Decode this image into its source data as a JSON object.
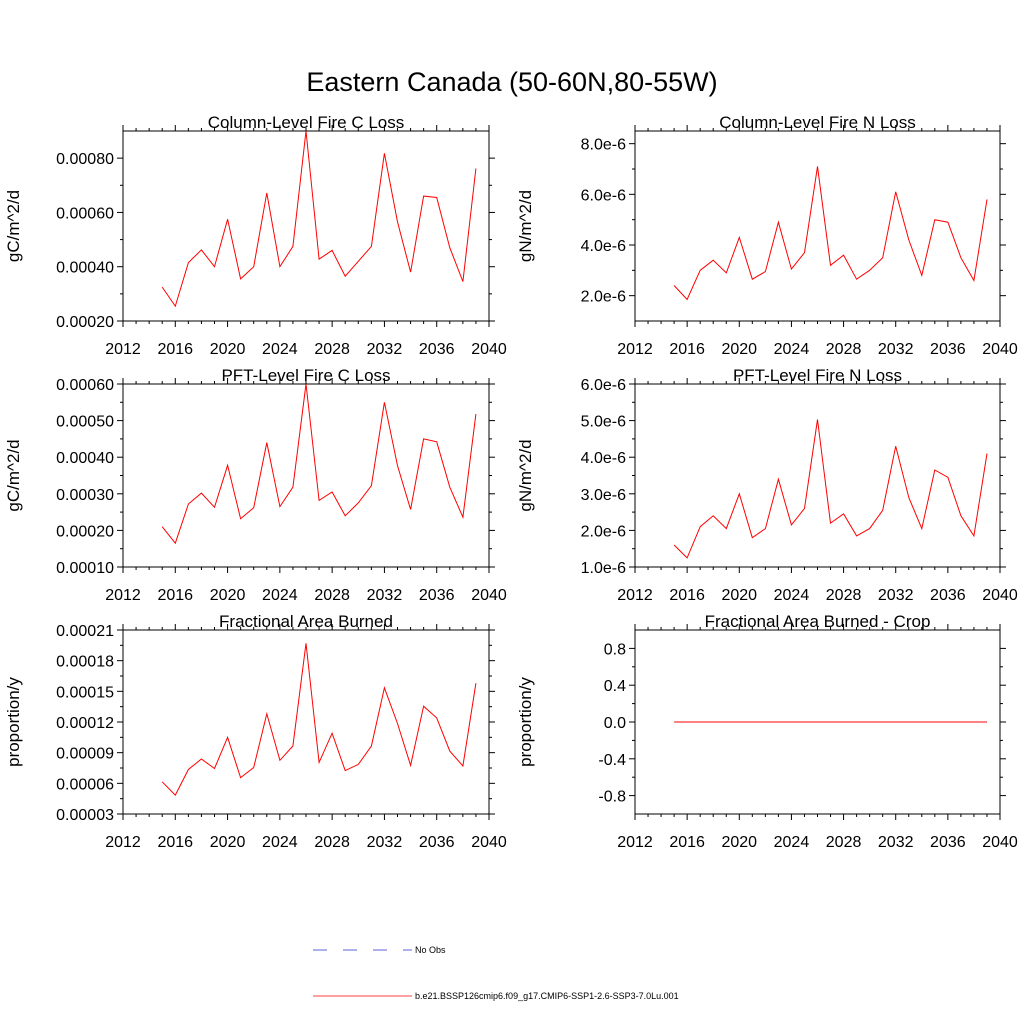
{
  "figure": {
    "title": "Eastern Canada (50-60N,80-55W)"
  },
  "legend": {
    "entries": [
      {
        "label": "No Obs",
        "color": "#2d2dcc",
        "style": "dashed"
      },
      {
        "label": "b.e21.BSSP126cmip6.f09_g17.CMIP6-SSP1-2.6-SSP3-7.0Lu.001",
        "color": "#ff0000",
        "style": "solid"
      }
    ]
  },
  "chart_data": [
    {
      "type": "line",
      "title": "Column-Level Fire C Loss",
      "ylabel": "gC/m^2/d",
      "xlim": [
        2012,
        2040
      ],
      "ylim": [
        0.0002,
        0.0009
      ],
      "xticks": [
        2012,
        2016,
        2020,
        2024,
        2028,
        2032,
        2036,
        2040
      ],
      "xtick_labels": [
        "2012",
        "2016",
        "2020",
        "2024",
        "2028",
        "2032",
        "2036",
        "2040"
      ],
      "yticks": [
        0.0002,
        0.0004,
        0.0006,
        0.0008
      ],
      "ytick_labels": [
        "0.00020",
        "0.00040",
        "0.00060",
        "0.00080"
      ],
      "color": "#ff0000",
      "x": [
        2015,
        2016,
        2017,
        2018,
        2019,
        2020,
        2021,
        2022,
        2023,
        2024,
        2025,
        2026,
        2027,
        2028,
        2029,
        2030,
        2031,
        2032,
        2033,
        2034,
        2035,
        2036,
        2037,
        2038,
        2039
      ],
      "y": [
        0.000325,
        0.000255,
        0.000415,
        0.000462,
        0.0004,
        0.000575,
        0.000355,
        0.0004,
        0.000672,
        0.0004,
        0.000475,
        0.0009,
        0.000428,
        0.00046,
        0.000365,
        0.00042,
        0.000475,
        0.000818,
        0.000565,
        0.00038,
        0.00066,
        0.000655,
        0.00047,
        0.000345,
        0.000762
      ]
    },
    {
      "type": "line",
      "title": "Column-Level Fire N Loss",
      "ylabel": "gN/m^2/d",
      "xlim": [
        2012,
        2040
      ],
      "ylim": [
        1e-06,
        8.5e-06
      ],
      "xticks": [
        2012,
        2016,
        2020,
        2024,
        2028,
        2032,
        2036,
        2040
      ],
      "xtick_labels": [
        "2012",
        "2016",
        "2020",
        "2024",
        "2028",
        "2032",
        "2036",
        "2040"
      ],
      "yticks": [
        2e-06,
        4e-06,
        6e-06,
        8e-06
      ],
      "ytick_labels": [
        "2.0e-6",
        "4.0e-6",
        "6.0e-6",
        "8.0e-6"
      ],
      "color": "#ff0000",
      "x": [
        2015,
        2016,
        2017,
        2018,
        2019,
        2020,
        2021,
        2022,
        2023,
        2024,
        2025,
        2026,
        2027,
        2028,
        2029,
        2030,
        2031,
        2032,
        2033,
        2034,
        2035,
        2036,
        2037,
        2038,
        2039
      ],
      "y": [
        2.4e-06,
        1.85e-06,
        3e-06,
        3.4e-06,
        2.9e-06,
        4.3e-06,
        2.65e-06,
        2.95e-06,
        4.9e-06,
        3.05e-06,
        3.7e-06,
        7.1e-06,
        3.2e-06,
        3.6e-06,
        2.65e-06,
        3e-06,
        3.5e-06,
        6.1e-06,
        4.2e-06,
        2.8e-06,
        5e-06,
        4.9e-06,
        3.5e-06,
        2.6e-06,
        5.8e-06
      ]
    },
    {
      "type": "line",
      "title": "PFT-Level Fire C Loss",
      "ylabel": "gC/m^2/d",
      "xlim": [
        2012,
        2040
      ],
      "ylim": [
        0.0001,
        0.0006
      ],
      "xticks": [
        2012,
        2016,
        2020,
        2024,
        2028,
        2032,
        2036,
        2040
      ],
      "xtick_labels": [
        "2012",
        "2016",
        "2020",
        "2024",
        "2028",
        "2032",
        "2036",
        "2040"
      ],
      "yticks": [
        0.0001,
        0.0002,
        0.0003,
        0.0004,
        0.0005,
        0.0006
      ],
      "ytick_labels": [
        "0.00010",
        "0.00020",
        "0.00030",
        "0.00040",
        "0.00050",
        "0.00060"
      ],
      "color": "#ff0000",
      "x": [
        2015,
        2016,
        2017,
        2018,
        2019,
        2020,
        2021,
        2022,
        2023,
        2024,
        2025,
        2026,
        2027,
        2028,
        2029,
        2030,
        2031,
        2032,
        2033,
        2034,
        2035,
        2036,
        2037,
        2038,
        2039
      ],
      "y": [
        0.00021,
        0.000165,
        0.000272,
        0.000302,
        0.000263,
        0.000378,
        0.000232,
        0.000262,
        0.00044,
        0.000265,
        0.000318,
        0.0006,
        0.000282,
        0.000305,
        0.00024,
        0.000275,
        0.000322,
        0.00055,
        0.000377,
        0.000257,
        0.00045,
        0.000442,
        0.000318,
        0.000236,
        0.000518
      ]
    },
    {
      "type": "line",
      "title": "PFT-Level Fire N Loss",
      "ylabel": "gN/m^2/d",
      "xlim": [
        2012,
        2040
      ],
      "ylim": [
        1e-06,
        6e-06
      ],
      "xticks": [
        2012,
        2016,
        2020,
        2024,
        2028,
        2032,
        2036,
        2040
      ],
      "xtick_labels": [
        "2012",
        "2016",
        "2020",
        "2024",
        "2028",
        "2032",
        "2036",
        "2040"
      ],
      "yticks": [
        1e-06,
        2e-06,
        3e-06,
        4e-06,
        5e-06,
        6e-06
      ],
      "ytick_labels": [
        "1.0e-6",
        "2.0e-6",
        "3.0e-6",
        "4.0e-6",
        "5.0e-6",
        "6.0e-6"
      ],
      "color": "#ff0000",
      "x": [
        2015,
        2016,
        2017,
        2018,
        2019,
        2020,
        2021,
        2022,
        2023,
        2024,
        2025,
        2026,
        2027,
        2028,
        2029,
        2030,
        2031,
        2032,
        2033,
        2034,
        2035,
        2036,
        2037,
        2038,
        2039
      ],
      "y": [
        1.6e-06,
        1.25e-06,
        2.1e-06,
        2.4e-06,
        2.05e-06,
        3e-06,
        1.8e-06,
        2.05e-06,
        3.4e-06,
        2.15e-06,
        2.6e-06,
        5.03e-06,
        2.2e-06,
        2.45e-06,
        1.85e-06,
        2.05e-06,
        2.55e-06,
        4.3e-06,
        2.9e-06,
        2.05e-06,
        3.65e-06,
        3.45e-06,
        2.4e-06,
        1.85e-06,
        4.1e-06
      ]
    },
    {
      "type": "line",
      "title": "Fractional Area Burned",
      "ylabel": "proportion/y",
      "xlim": [
        2012,
        2040
      ],
      "ylim": [
        3e-05,
        0.00021
      ],
      "xticks": [
        2012,
        2016,
        2020,
        2024,
        2028,
        2032,
        2036,
        2040
      ],
      "xtick_labels": [
        "2012",
        "2016",
        "2020",
        "2024",
        "2028",
        "2032",
        "2036",
        "2040"
      ],
      "yticks": [
        3e-05,
        6e-05,
        9e-05,
        0.00012,
        0.00015,
        0.00018,
        0.00021
      ],
      "ytick_labels": [
        "0.00003",
        "0.00006",
        "0.00009",
        "0.00012",
        "0.00015",
        "0.00018",
        "0.00021"
      ],
      "color": "#ff0000",
      "x": [
        2015,
        2016,
        2017,
        2018,
        2019,
        2020,
        2021,
        2022,
        2023,
        2024,
        2025,
        2026,
        2027,
        2028,
        2029,
        2030,
        2031,
        2032,
        2033,
        2034,
        2035,
        2036,
        2037,
        2038,
        2039
      ],
      "y": [
        6.15e-05,
        4.85e-05,
        7.35e-05,
        8.38e-05,
        7.45e-05,
        0.000105,
        6.55e-05,
        7.55e-05,
        0.000128,
        8.25e-05,
        9.65e-05,
        0.000197,
        8.05e-05,
        0.000109,
        7.25e-05,
        7.85e-05,
        9.65e-05,
        0.0001535,
        0.0001185,
        7.75e-05,
        0.0001355,
        0.000124,
        9.15e-05,
        7.7e-05,
        0.000158
      ]
    },
    {
      "type": "line",
      "title": "Fractional Area Burned - Crop",
      "ylabel": "proportion/y",
      "xlim": [
        2012,
        2040
      ],
      "ylim": [
        -1.0,
        1.0
      ],
      "xticks": [
        2012,
        2016,
        2020,
        2024,
        2028,
        2032,
        2036,
        2040
      ],
      "xtick_labels": [
        "2012",
        "2016",
        "2020",
        "2024",
        "2028",
        "2032",
        "2036",
        "2040"
      ],
      "yticks": [
        -0.8,
        -0.4,
        0.0,
        0.4,
        0.8
      ],
      "ytick_labels": [
        "-0.8",
        "-0.4",
        "0.0",
        "0.4",
        "0.8"
      ],
      "color": "#ff0000",
      "x": [
        2015,
        2016,
        2017,
        2018,
        2019,
        2020,
        2021,
        2022,
        2023,
        2024,
        2025,
        2026,
        2027,
        2028,
        2029,
        2030,
        2031,
        2032,
        2033,
        2034,
        2035,
        2036,
        2037,
        2038,
        2039
      ],
      "y": [
        0,
        0,
        0,
        0,
        0,
        0,
        0,
        0,
        0,
        0,
        0,
        0,
        0,
        0,
        0,
        0,
        0,
        0,
        0,
        0,
        0,
        0,
        0,
        0,
        0
      ]
    }
  ]
}
